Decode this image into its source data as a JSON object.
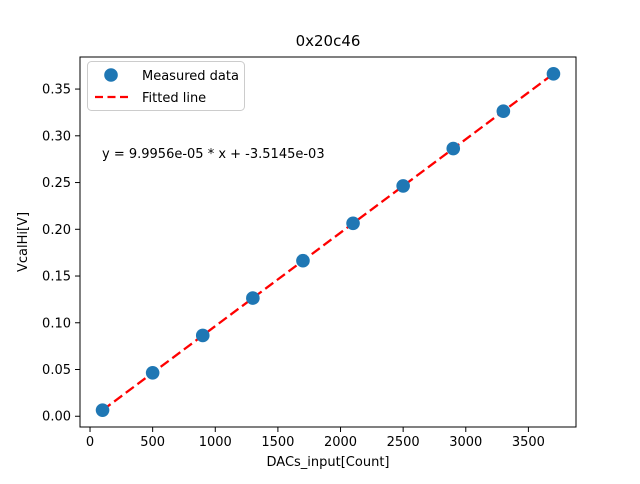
{
  "chart_data": {
    "type": "scatter",
    "title": "0x20c46",
    "xlabel": "DACs_input[Count]",
    "ylabel": "VcalHi[V]",
    "annotation": "y = 9.9956e-05 * x + -3.5145e-03",
    "x": [
      100,
      500,
      900,
      1300,
      1700,
      2100,
      2500,
      2900,
      3300,
      3700
    ],
    "series": [
      {
        "name": "Measured data",
        "type": "scatter",
        "color": "#1f77b4",
        "values": [
          0.0065,
          0.0465,
          0.0864,
          0.1264,
          0.1664,
          0.2064,
          0.2464,
          0.2864,
          0.3263,
          0.3663
        ]
      },
      {
        "name": "Fitted line",
        "type": "line",
        "style": "dashed",
        "color": "#ff0000",
        "slope": 9.9956e-05,
        "intercept": -0.0035145,
        "x_start": 100,
        "x_end": 3700
      }
    ],
    "xlim": [
      -80,
      3880
    ],
    "ylim": [
      -0.0115,
      0.3843
    ],
    "xticks": [
      0,
      500,
      1000,
      1500,
      2000,
      2500,
      3000,
      3500
    ],
    "yticks": [
      0.0,
      0.05,
      0.1,
      0.15,
      0.2,
      0.25,
      0.3,
      0.35
    ],
    "grid": false,
    "legend_position": "upper left",
    "colors": {
      "marker": "#1f77b4",
      "fit_line": "#ff0000",
      "frame": "#000000",
      "legend_edge": "#cccccc",
      "background": "#ffffff"
    }
  }
}
